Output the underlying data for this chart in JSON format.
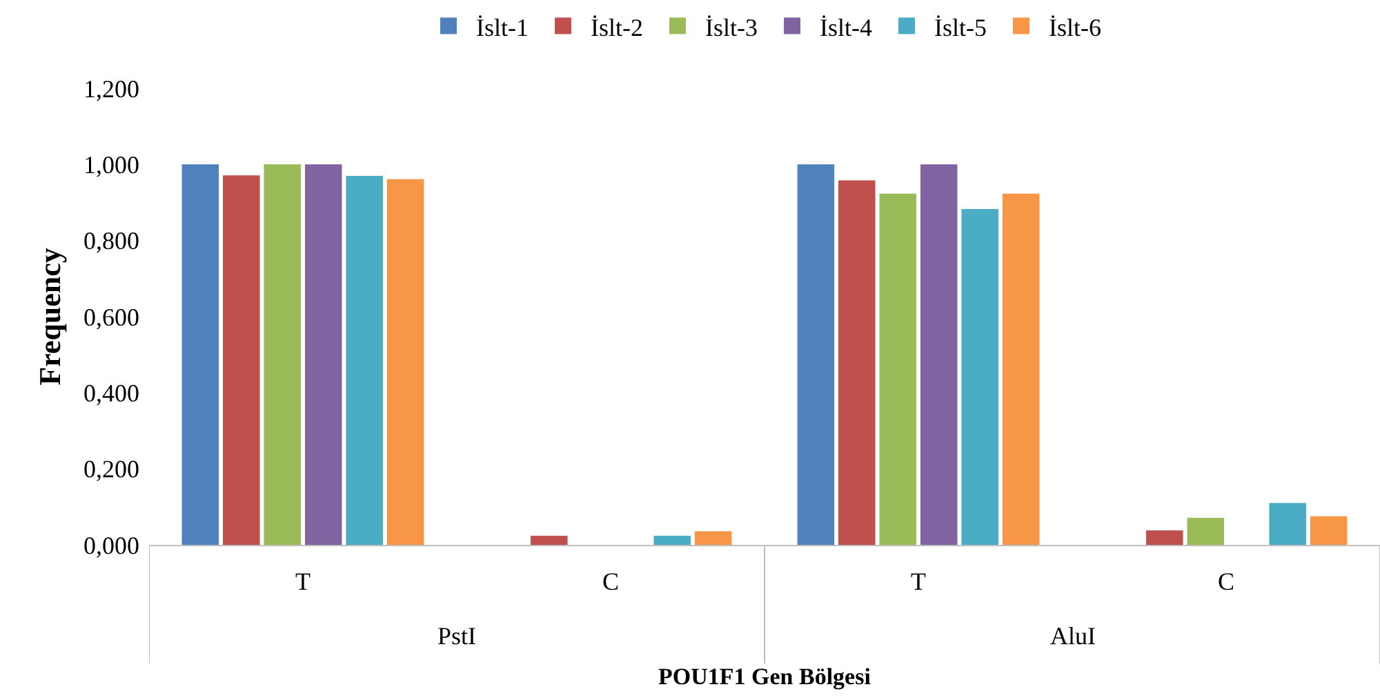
{
  "chart_data": {
    "type": "bar",
    "xlabel": "POU1F1 Gen Bölgesi",
    "ylabel": "Frequency",
    "categories": [
      "T",
      "C",
      "T",
      "C"
    ],
    "annotations": [
      "PstI",
      "AluI"
    ],
    "series": [
      {
        "name": "İslt-1",
        "color": "#4f81bd",
        "values": [
          1.0,
          0,
          1.0,
          0
        ]
      },
      {
        "name": "İslt-2",
        "color": "#c0504d",
        "values": [
          0.971,
          0.024,
          0.958,
          0.038
        ]
      },
      {
        "name": "İslt-3",
        "color": "#9bbb59",
        "values": [
          1.0,
          0,
          0.923,
          0.071
        ]
      },
      {
        "name": "İslt-4",
        "color": "#8064a2",
        "values": [
          1.0,
          0,
          1.0,
          0
        ]
      },
      {
        "name": "İslt-5",
        "color": "#4bacc6",
        "values": [
          0.97,
          0.024,
          0.883,
          0.11
        ]
      },
      {
        "name": "İslt-6",
        "color": "#f79646",
        "values": [
          0.961,
          0.036,
          0.923,
          0.075
        ]
      }
    ],
    "ylim": [
      0,
      1.2
    ],
    "yticks": [
      {
        "value": 0,
        "label": "0,000"
      },
      {
        "value": 0.2,
        "label": "0,200"
      },
      {
        "value": 0.4,
        "label": "0,400"
      },
      {
        "value": 0.6,
        "label": "0,600"
      },
      {
        "value": 0.8,
        "label": "0,800"
      },
      {
        "value": 1.0,
        "label": "1,000"
      },
      {
        "value": 1.2,
        "label": "1,200"
      }
    ],
    "legend": "top"
  }
}
